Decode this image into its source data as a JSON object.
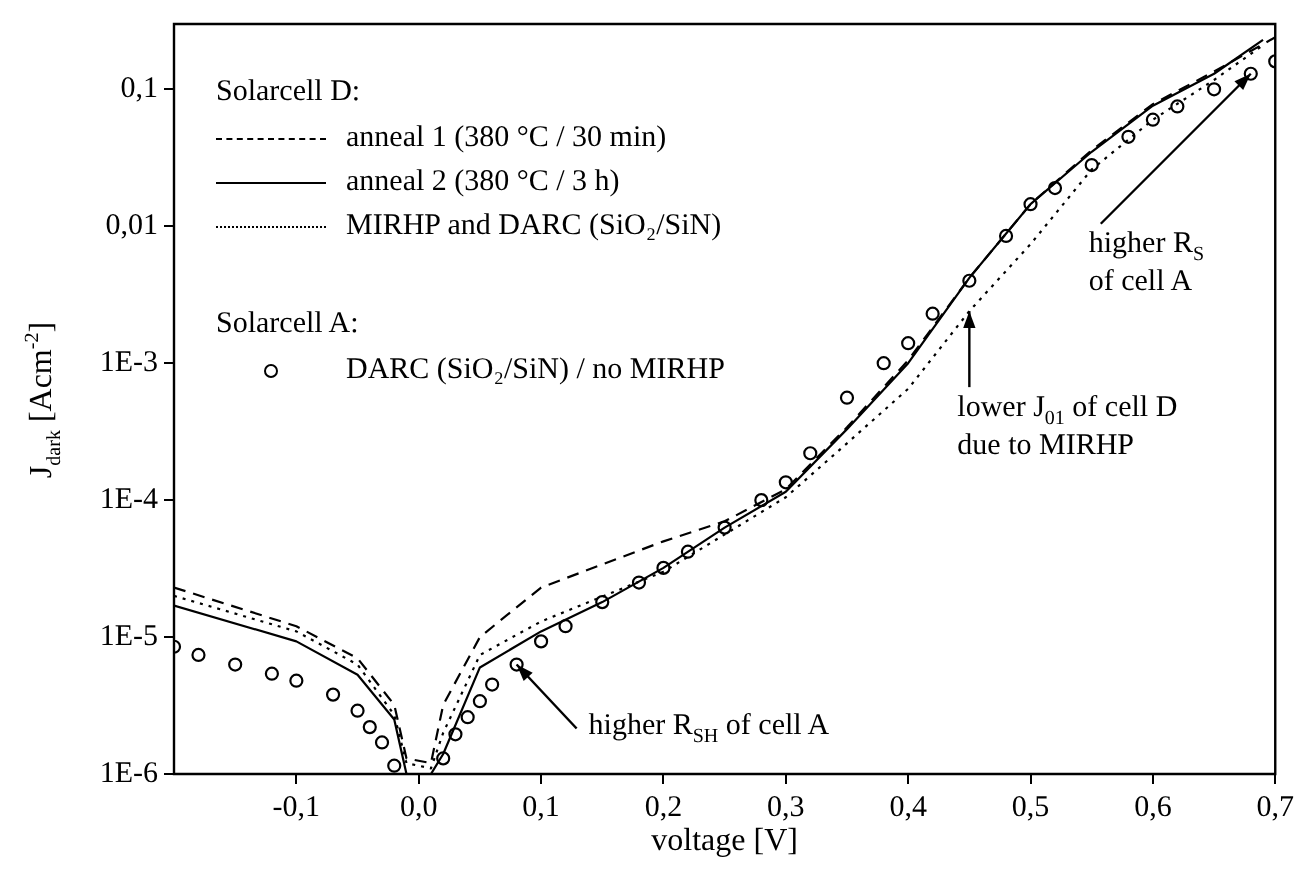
{
  "chart_data": {
    "type": "line",
    "xlabel": "voltage [V]",
    "ylabel": "J$_{dark}$ [Acm$^{-2}$]",
    "legend_title": "Solarcell D:",
    "legend": "top left",
    "log": "y",
    "grid": false,
    "xlim": [
      -0.2,
      0.7
    ],
    "xticks": [
      {
        "value": -0.1,
        "label": "-0,1"
      },
      {
        "value": 0,
        "label": "0,0"
      },
      {
        "value": 0.1,
        "label": "0,1"
      },
      {
        "value": 0.2,
        "label": "0,2"
      },
      {
        "value": 0.3,
        "label": "0,3"
      },
      {
        "value": 0.4,
        "label": "0,4"
      },
      {
        "value": 0.5,
        "label": "0,5"
      },
      {
        "value": 0.6,
        "label": "0,6"
      },
      {
        "value": 0.7,
        "label": "0,7"
      }
    ],
    "ylim": [
      1e-06,
      0.3
    ],
    "yticks": [
      {
        "value": 1e-06,
        "label": "1E-6"
      },
      {
        "value": 1e-05,
        "label": "1E-5"
      },
      {
        "value": 0.0001,
        "label": "1E-4"
      },
      {
        "value": 0.001,
        "label": "1E-3"
      },
      {
        "value": 0.01,
        "label": "0,01"
      },
      {
        "value": 0.1,
        "label": "0,1"
      }
    ],
    "series": [
      {
        "name": "anneal 1 (380 °C / 30 min)",
        "type": "line",
        "line_style": "dashed",
        "marker": "none",
        "color": "#000000",
        "x": [
          -0.2,
          -0.1,
          -0.05,
          -0.02,
          -0.01,
          0.01,
          0.02,
          0.05,
          0.1,
          0.2,
          0.25,
          0.3,
          0.35,
          0.4,
          0.45,
          0.5,
          0.55,
          0.6,
          0.65,
          0.7
        ],
        "values": [
          2.3e-05,
          1.2e-05,
          7e-06,
          3.2e-06,
          1.3e-06,
          1.2e-06,
          3.2e-06,
          1e-05,
          2.3e-05,
          5e-05,
          7e-05,
          0.00012,
          0.00034,
          0.00105,
          0.0042,
          0.0145,
          0.036,
          0.078,
          0.135,
          0.24
        ]
      },
      {
        "name": "anneal 2 (380 °C / 3 h)",
        "type": "line",
        "line_style": "solid",
        "marker": "none",
        "color": "#000000",
        "x": [
          -0.2,
          -0.1,
          -0.05,
          -0.02,
          -0.01,
          0.01,
          0.02,
          0.05,
          0.1,
          0.15,
          0.2,
          0.25,
          0.3,
          0.35,
          0.4,
          0.45,
          0.5,
          0.55,
          0.6,
          0.65,
          0.69
        ],
        "values": [
          1.7e-05,
          9.3e-06,
          5.3e-06,
          2.5e-06,
          1e-06,
          1e-06,
          1.4e-06,
          6e-06,
          1.1e-05,
          1.8e-05,
          3.2e-05,
          6.3e-05,
          0.000115,
          0.00033,
          0.001,
          0.0042,
          0.0145,
          0.035,
          0.076,
          0.13,
          0.23
        ]
      },
      {
        "name": "MIRHP and DARC (SiO₂/SiN)",
        "type": "line",
        "line_style": "dotted",
        "marker": "none",
        "color": "#000000",
        "x": [
          -0.2,
          -0.1,
          -0.05,
          -0.02,
          -0.01,
          0.01,
          0.02,
          0.05,
          0.1,
          0.2,
          0.3,
          0.35,
          0.4,
          0.45,
          0.5,
          0.55,
          0.6,
          0.65,
          0.69
        ],
        "values": [
          2e-05,
          1.1e-05,
          6.3e-06,
          2.7e-06,
          1.2e-06,
          1.1e-06,
          2e-06,
          7.4e-06,
          1.3e-05,
          3e-05,
          0.000105,
          0.00026,
          0.00065,
          0.0024,
          0.0074,
          0.026,
          0.06,
          0.117,
          0.21
        ]
      },
      {
        "name": "DARC (SiO₂/SiN) / no MIRHP",
        "type": "scatter",
        "marker": "circle",
        "color": "#000000",
        "x": [
          -0.2,
          -0.18,
          -0.15,
          -0.12,
          -0.1,
          -0.07,
          -0.05,
          -0.04,
          -0.03,
          -0.02,
          0.02,
          0.03,
          0.04,
          0.05,
          0.06,
          0.08,
          0.1,
          0.12,
          0.15,
          0.18,
          0.2,
          0.22,
          0.25,
          0.28,
          0.3,
          0.32,
          0.35,
          0.38,
          0.4,
          0.42,
          0.45,
          0.48,
          0.5,
          0.52,
          0.55,
          0.58,
          0.6,
          0.62,
          0.65,
          0.68,
          0.7
        ],
        "values": [
          8.5e-06,
          7.4e-06,
          6.3e-06,
          5.4e-06,
          4.8e-06,
          3.8e-06,
          2.9e-06,
          2.2e-06,
          1.7e-06,
          1.15e-06,
          1.3e-06,
          1.95e-06,
          2.6e-06,
          3.4e-06,
          4.5e-06,
          6.3e-06,
          9.3e-06,
          1.2e-05,
          1.8e-05,
          2.5e-05,
          3.2e-05,
          4.2e-05,
          6.3e-05,
          0.0001,
          0.000135,
          0.00022,
          0.00056,
          0.001,
          0.0014,
          0.0023,
          0.004,
          0.0085,
          0.0145,
          0.019,
          0.028,
          0.045,
          0.06,
          0.075,
          0.1,
          0.13,
          0.16
        ]
      }
    ],
    "annotations": [
      "Solarcell A:",
      {
        "text": "higher R$_{SH}$ of cell A",
        "x": 0.08,
        "y": 6.3e-06
      },
      {
        "text": "lower J$_{01}$ of cell D due to MIRHP",
        "x": 0.45,
        "y": 0.0024
      },
      {
        "text": "higher R$_{S}$ of cell A",
        "x": 0.68,
        "y": 0.13
      }
    ]
  }
}
